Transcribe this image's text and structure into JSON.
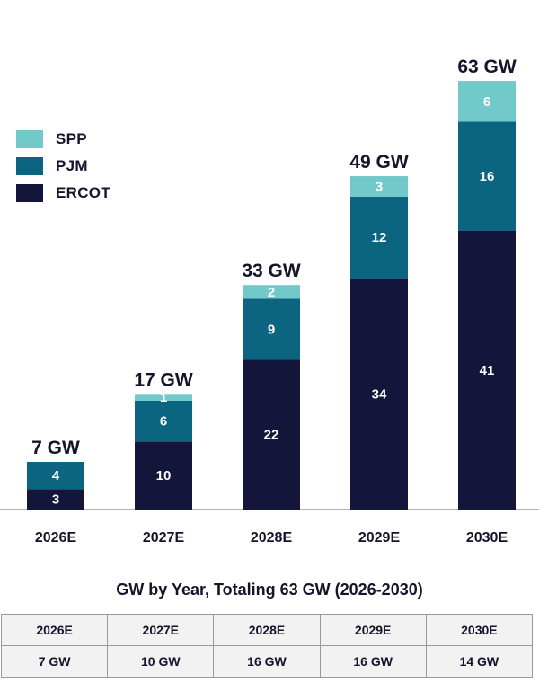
{
  "chart_data": {
    "type": "bar",
    "stacked": true,
    "categories": [
      "2026E",
      "2027E",
      "2028E",
      "2029E",
      "2030E"
    ],
    "series": [
      {
        "name": "ERCOT",
        "values": [
          3,
          10,
          22,
          34,
          41
        ],
        "color": "#13153a"
      },
      {
        "name": "PJM",
        "values": [
          4,
          6,
          9,
          12,
          16
        ],
        "color": "#0b6580"
      },
      {
        "name": "SPP",
        "values": [
          null,
          1,
          2,
          3,
          6
        ],
        "color": "#71c9c9"
      }
    ],
    "totals": [
      "7 GW",
      "17 GW",
      "33 GW",
      "49 GW",
      "63 GW"
    ],
    "legend": {
      "position": "upper-left",
      "order": [
        "SPP",
        "PJM",
        "ERCOT"
      ]
    },
    "ylim": [
      0,
      63
    ],
    "grid": false
  },
  "subtitle": "GW by Year, Totaling 63 GW (2026-2030)",
  "table": {
    "headers": [
      "2026E",
      "2027E",
      "2028E",
      "2029E",
      "2030E"
    ],
    "values": [
      "7 GW",
      "10 GW",
      "16 GW",
      "16 GW",
      "14 GW"
    ]
  }
}
